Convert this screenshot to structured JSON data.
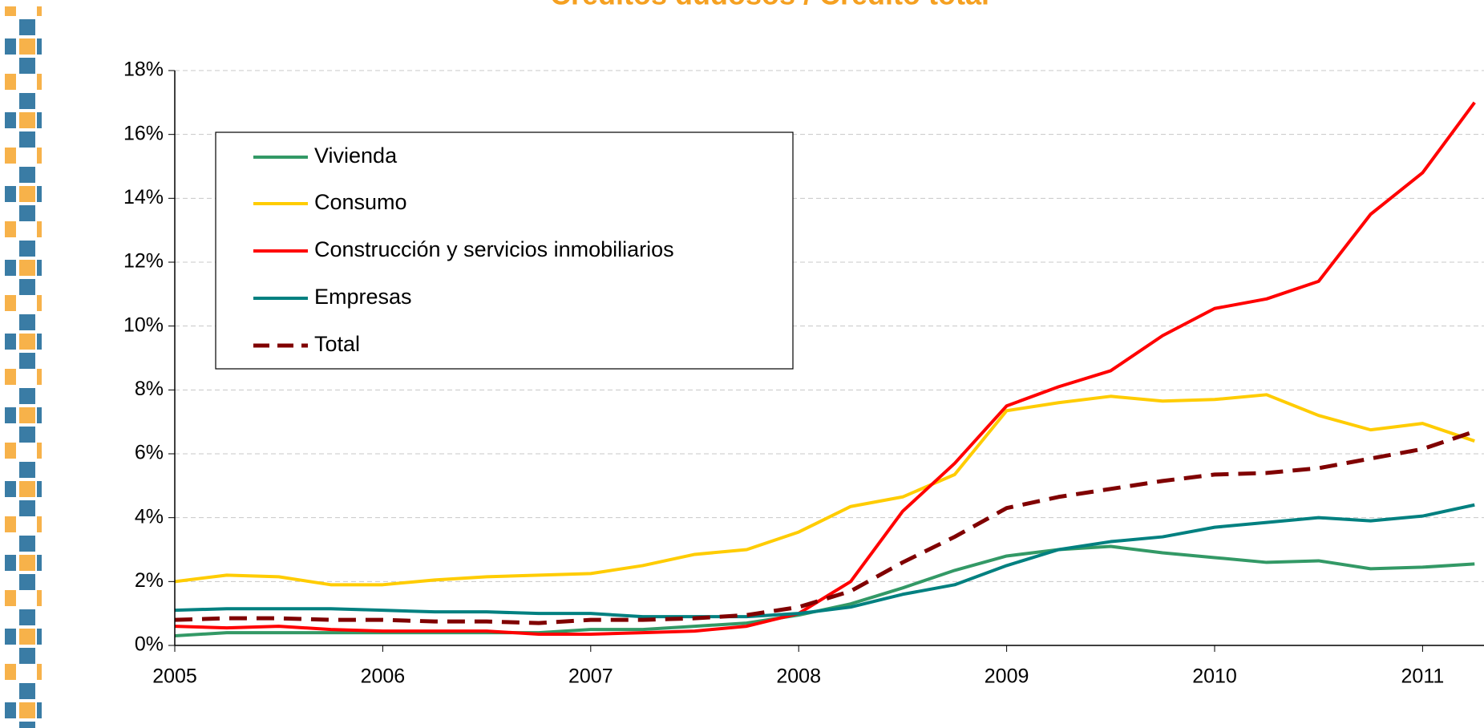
{
  "chart_data": {
    "type": "line",
    "title": "Créditos dudosos / Crédito total",
    "x": [
      2005,
      2005.25,
      2005.5,
      2005.75,
      2006,
      2006.25,
      2006.5,
      2006.75,
      2007,
      2007.25,
      2007.5,
      2007.75,
      2008,
      2008.25,
      2008.5,
      2008.75,
      2009,
      2009.25,
      2009.5,
      2009.75,
      2010,
      2010.25,
      2010.5,
      2010.75,
      2011,
      2011.25
    ],
    "xlim": [
      2005,
      2011.3
    ],
    "xticks": [
      2005,
      2006,
      2007,
      2008,
      2009,
      2010,
      2011
    ],
    "ylim": [
      0,
      18
    ],
    "yticks": [
      {
        "value": 0,
        "label": "0%"
      },
      {
        "value": 2,
        "label": "2%"
      },
      {
        "value": 4,
        "label": "4%"
      },
      {
        "value": 6,
        "label": "6%"
      },
      {
        "value": 8,
        "label": "8%"
      },
      {
        "value": 10,
        "label": "10%"
      },
      {
        "value": 12,
        "label": "12%"
      },
      {
        "value": 14,
        "label": "14%"
      },
      {
        "value": 16,
        "label": "16%"
      },
      {
        "value": 18,
        "label": "18%"
      }
    ],
    "grid": true,
    "legend": "upper left",
    "series": [
      {
        "name": "Vivienda",
        "color": "#339966",
        "dashed": false,
        "values": [
          0.3,
          0.4,
          0.4,
          0.4,
          0.4,
          0.4,
          0.4,
          0.4,
          0.5,
          0.5,
          0.6,
          0.7,
          0.95,
          1.3,
          1.8,
          2.35,
          2.8,
          3.0,
          3.1,
          2.9,
          2.75,
          2.6,
          2.65,
          2.4,
          2.45,
          2.55
        ]
      },
      {
        "name": "Consumo",
        "color": "#ffcc00",
        "dashed": false,
        "values": [
          2.0,
          2.2,
          2.15,
          1.9,
          1.9,
          2.05,
          2.15,
          2.2,
          2.25,
          2.5,
          2.85,
          3.0,
          3.55,
          4.35,
          4.65,
          5.35,
          7.35,
          7.6,
          7.8,
          7.65,
          7.7,
          7.85,
          7.2,
          6.75,
          6.95,
          6.4
        ]
      },
      {
        "name": "Construcción y servicios inmobiliarios",
        "color": "#ff0000",
        "dashed": false,
        "values": [
          0.6,
          0.55,
          0.6,
          0.5,
          0.45,
          0.45,
          0.45,
          0.35,
          0.35,
          0.4,
          0.45,
          0.6,
          1.0,
          2.0,
          4.2,
          5.7,
          7.5,
          8.1,
          8.6,
          9.7,
          10.55,
          10.85,
          11.4,
          13.5,
          14.8,
          17.0
        ]
      },
      {
        "name": "Empresas",
        "color": "#008080",
        "dashed": false,
        "values": [
          1.1,
          1.15,
          1.15,
          1.15,
          1.1,
          1.05,
          1.05,
          1.0,
          1.0,
          0.9,
          0.9,
          0.9,
          1.0,
          1.2,
          1.6,
          1.9,
          2.5,
          3.0,
          3.25,
          3.4,
          3.7,
          3.85,
          4.0,
          3.9,
          4.05,
          4.4
        ]
      },
      {
        "name": "Total",
        "color": "#800000",
        "dashed": true,
        "values": [
          0.8,
          0.85,
          0.85,
          0.8,
          0.8,
          0.75,
          0.75,
          0.7,
          0.8,
          0.8,
          0.85,
          0.95,
          1.2,
          1.7,
          2.6,
          3.4,
          4.3,
          4.65,
          4.9,
          5.15,
          5.35,
          5.4,
          5.55,
          5.85,
          6.15,
          6.7
        ]
      }
    ]
  }
}
